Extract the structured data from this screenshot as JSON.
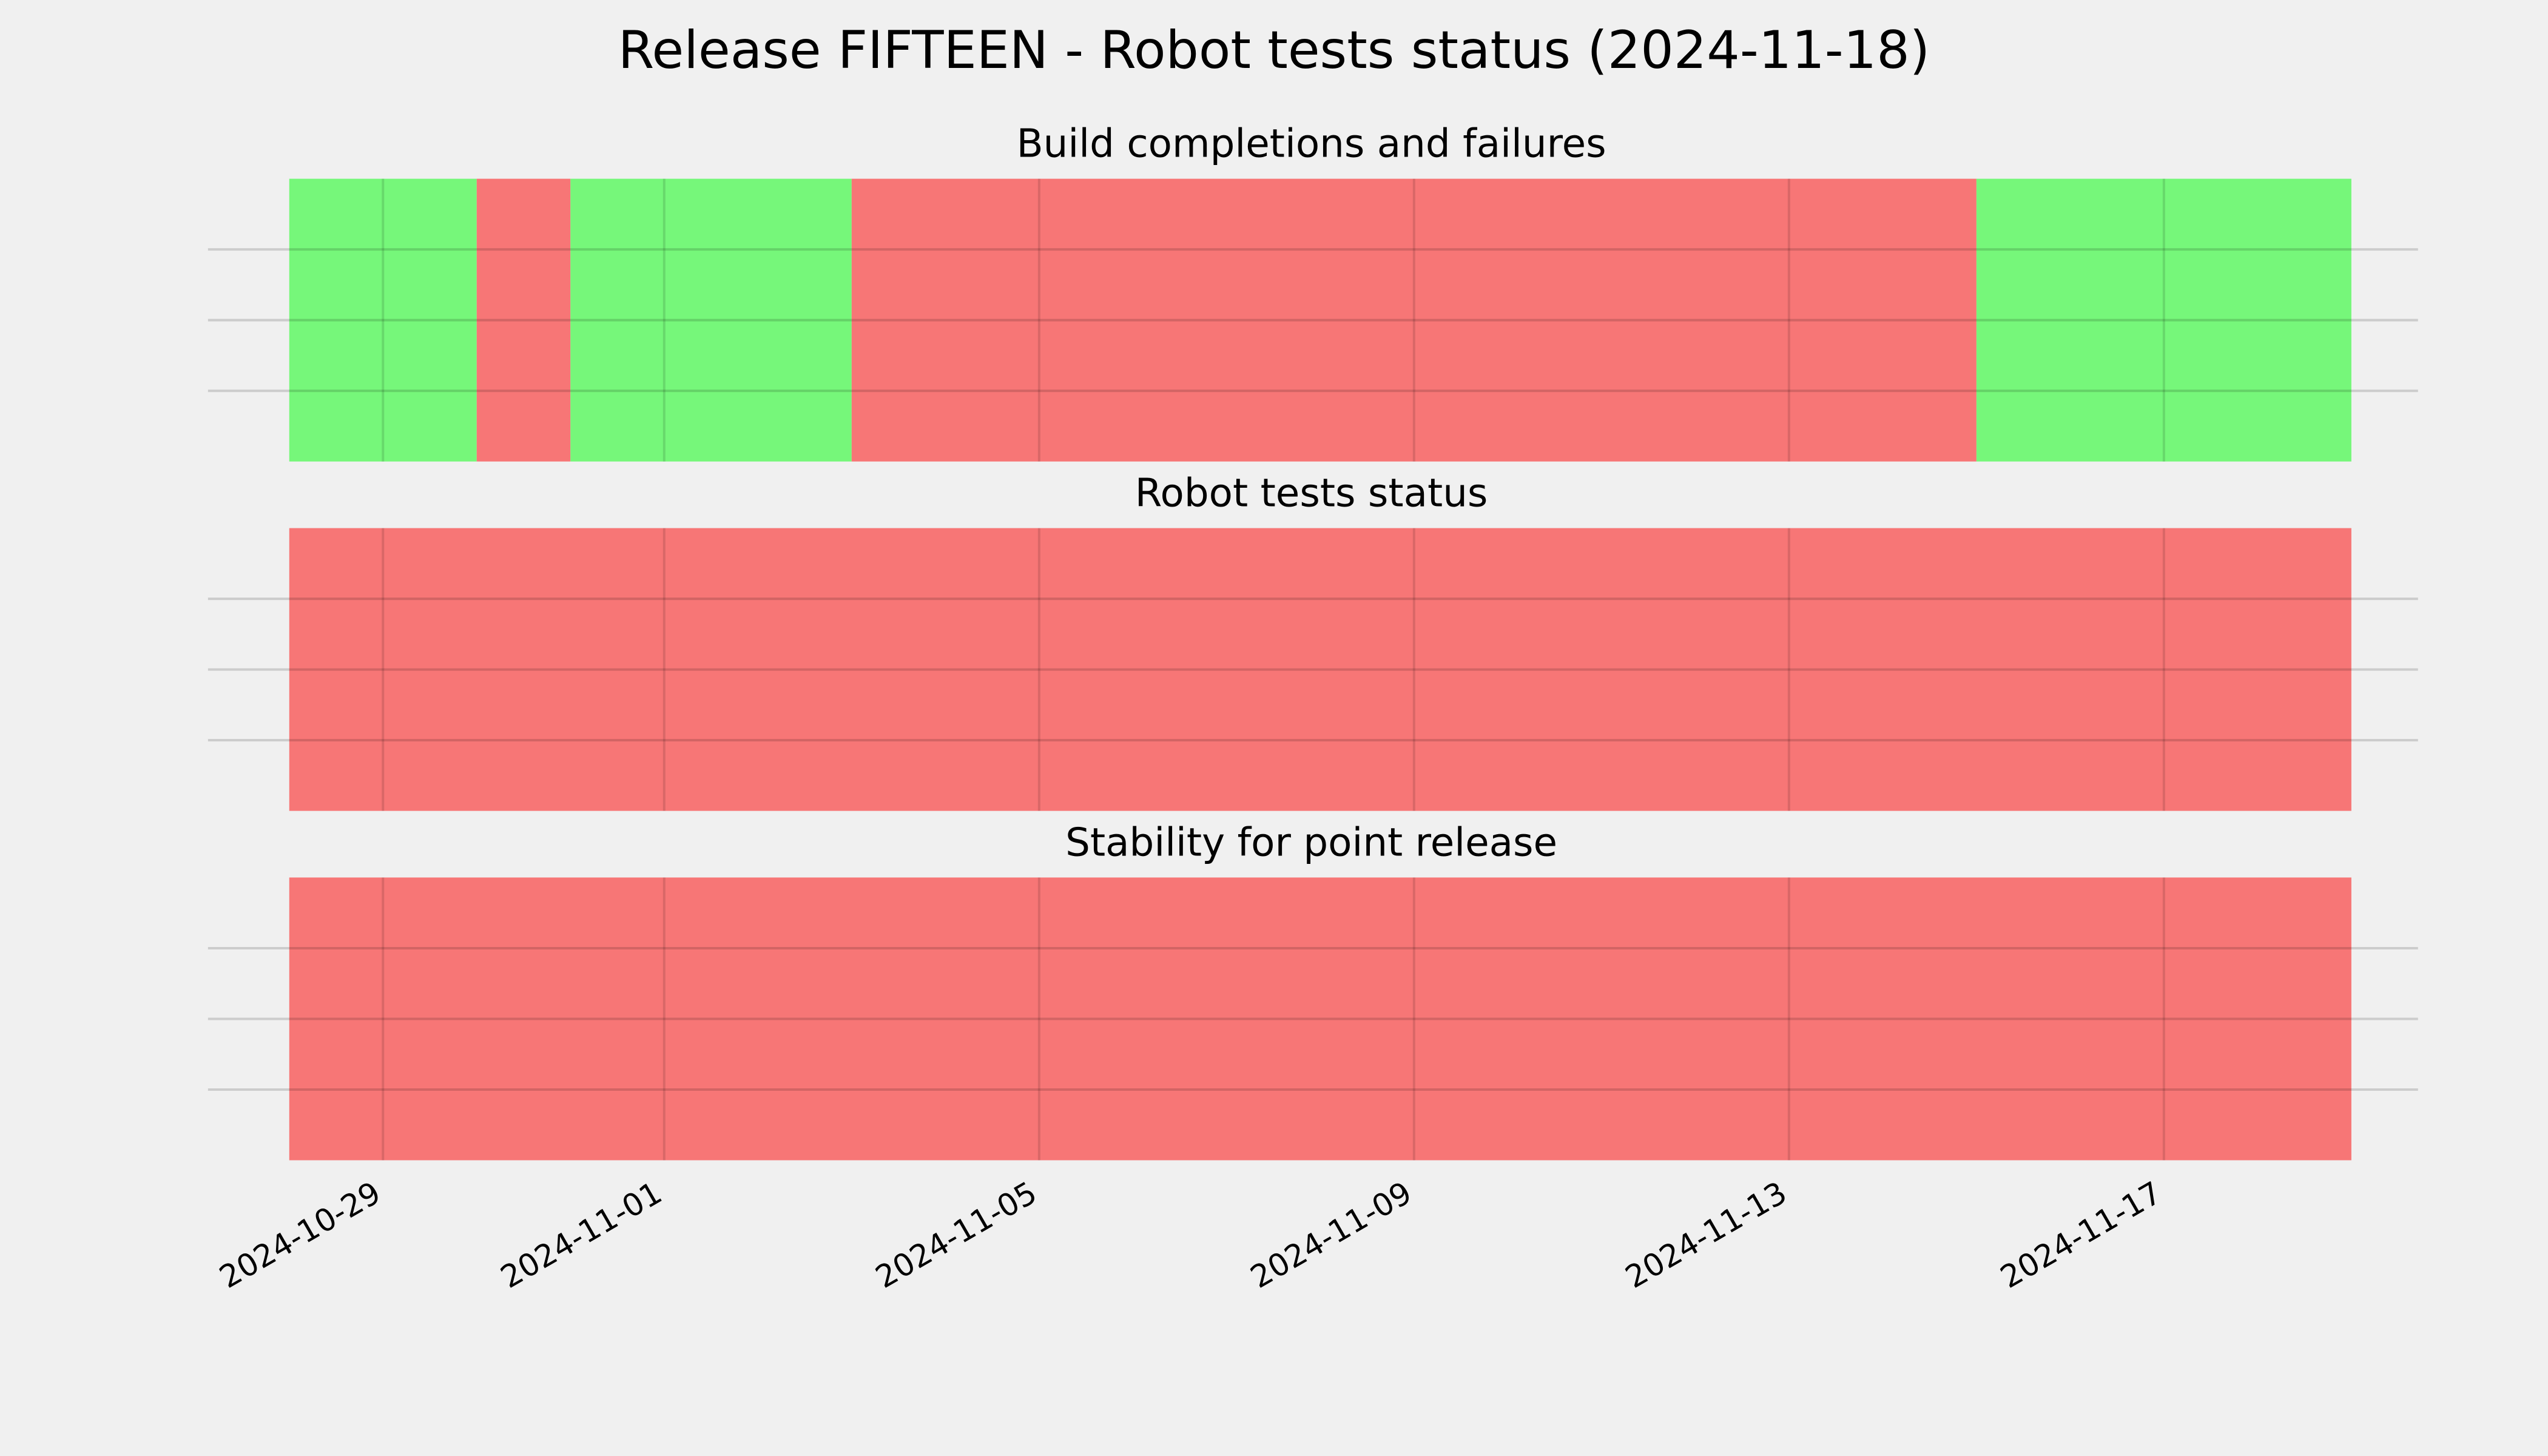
{
  "title": "Release FIFTEEN - Robot tests status (2024-11-18)",
  "chart_data": [
    {
      "type": "timeline",
      "title": "Build completions and failures",
      "segments": [
        {
          "start": "2024-10-28",
          "end": "2024-10-30",
          "color": "#76f77a"
        },
        {
          "start": "2024-10-30",
          "end": "2024-10-31",
          "color": "#f77676"
        },
        {
          "start": "2024-10-31",
          "end": "2024-11-03",
          "color": "#76f77a"
        },
        {
          "start": "2024-11-03",
          "end": "2024-11-15",
          "color": "#f77676"
        },
        {
          "start": "2024-11-15",
          "end": "2024-11-19",
          "color": "#76f77a"
        }
      ],
      "xlim": [
        "2024-10-28",
        "2024-11-19"
      ],
      "xticks": [
        "2024-10-29",
        "2024-11-01",
        "2024-11-05",
        "2024-11-09",
        "2024-11-13",
        "2024-11-17"
      ]
    },
    {
      "type": "timeline",
      "title": "Robot tests status",
      "segments": [
        {
          "start": "2024-10-28",
          "end": "2024-11-19",
          "color": "#f77676"
        }
      ],
      "xlim": [
        "2024-10-28",
        "2024-11-19"
      ],
      "xticks": [
        "2024-10-29",
        "2024-11-01",
        "2024-11-05",
        "2024-11-09",
        "2024-11-13",
        "2024-11-17"
      ]
    },
    {
      "type": "timeline",
      "title": "Stability for point release",
      "segments": [
        {
          "start": "2024-10-28",
          "end": "2024-11-19",
          "color": "#f77676"
        }
      ],
      "xlim": [
        "2024-10-28",
        "2024-11-19"
      ],
      "xticks": [
        "2024-10-29",
        "2024-11-01",
        "2024-11-05",
        "2024-11-09",
        "2024-11-13",
        "2024-11-17"
      ]
    }
  ]
}
